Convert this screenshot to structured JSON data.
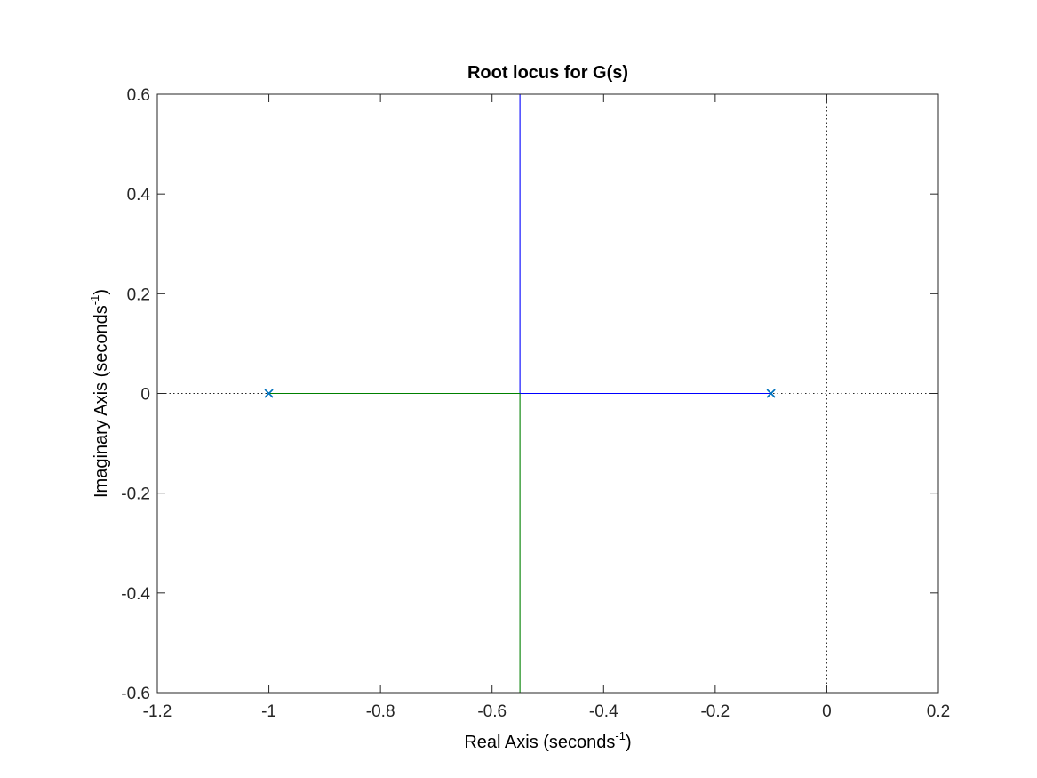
{
  "chart_data": {
    "type": "scatter",
    "title": "Root locus for G(s)",
    "xlabel": {
      "text": "Real Axis (seconds",
      "superscript": "-1",
      "suffix": ")"
    },
    "ylabel": {
      "text": "Imaginary Axis (seconds",
      "superscript": "-1",
      "suffix": ")"
    },
    "xlim": [
      -1.2,
      0.2
    ],
    "ylim": [
      -0.6,
      0.6
    ],
    "xticks": [
      -1.2,
      -1,
      -0.8,
      -0.6,
      -0.4,
      -0.2,
      0,
      0.2
    ],
    "xtick_labels": [
      "-1.2",
      "-1",
      "-0.8",
      "-0.6",
      "-0.4",
      "-0.2",
      "0",
      "0.2"
    ],
    "yticks": [
      -0.6,
      -0.4,
      -0.2,
      0,
      0.2,
      0.4,
      0.6
    ],
    "ytick_labels": [
      "-0.6",
      "-0.4",
      "-0.2",
      "0",
      "0.2",
      "0.4",
      "0.6"
    ],
    "grid": false,
    "breakaway_point": -0.55,
    "poles": [
      {
        "x": -1,
        "y": 0
      },
      {
        "x": -0.1,
        "y": 0
      }
    ],
    "series": [
      {
        "color": "#0000ff",
        "segments": [
          {
            "x": [
              -0.1,
              -0.55
            ],
            "y": [
              0,
              0
            ]
          },
          {
            "x": [
              -0.55,
              -0.55
            ],
            "y": [
              0,
              0.6
            ]
          }
        ]
      },
      {
        "color": "#008000",
        "segments": [
          {
            "x": [
              -1,
              -0.55
            ],
            "y": [
              0,
              0
            ]
          },
          {
            "x": [
              -0.55,
              -0.55
            ],
            "y": [
              0,
              -0.6
            ]
          }
        ]
      }
    ],
    "reference_lines": [
      {
        "orientation": "horizontal",
        "value": 0,
        "style": "dotted"
      },
      {
        "orientation": "vertical",
        "value": 0,
        "style": "dotted"
      }
    ],
    "colors": {
      "pole_marker": "#0072bd",
      "axes": "#262626",
      "reference": "#262626"
    }
  }
}
